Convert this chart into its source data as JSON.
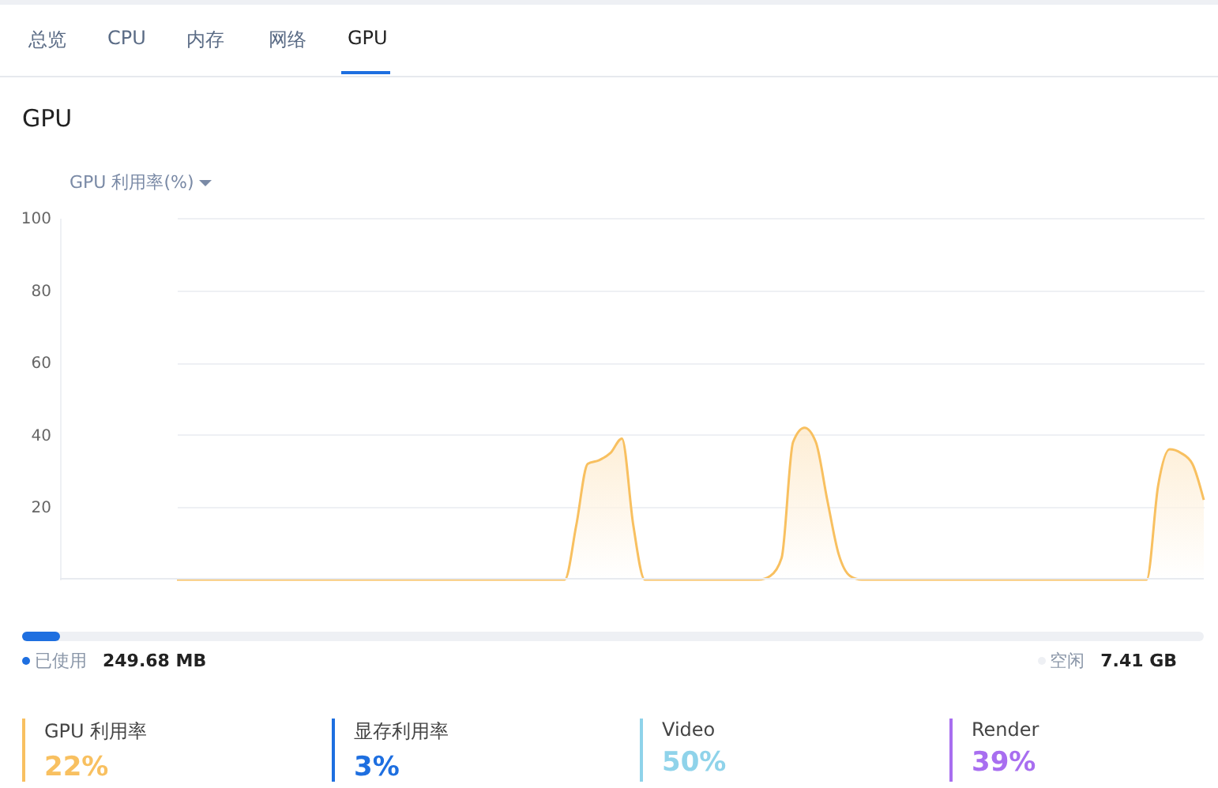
{
  "chart_data": {
    "type": "area",
    "title": "GPU",
    "ylabel": "GPU 利用率(%)",
    "categories": [
      null,
      null,
      null,
      null,
      null,
      null,
      null,
      null,
      null,
      null,
      null,
      null,
      null,
      null,
      null,
      null,
      null,
      null,
      null,
      null,
      null,
      null,
      null,
      null,
      null,
      null,
      null,
      null,
      null,
      null,
      null,
      null,
      null,
      null,
      null,
      null,
      null,
      null,
      null,
      null,
      null,
      null,
      null,
      null,
      null,
      null,
      null,
      null,
      null,
      null,
      null,
      null,
      null,
      null,
      null,
      null,
      null,
      null,
      null,
      null,
      null,
      null,
      null,
      null,
      null,
      null,
      null,
      null,
      null,
      null,
      null,
      null,
      null,
      null,
      null,
      null,
      null,
      null,
      null,
      null,
      null,
      null,
      null,
      null,
      null,
      null,
      null,
      null,
      null,
      null,
      null
    ],
    "series": [
      {
        "color": "#f8c060",
        "values": [
          0,
          0,
          0,
          0,
          0,
          0,
          0,
          0,
          0,
          0,
          0,
          0,
          0,
          0,
          0,
          0,
          0,
          0,
          0,
          0,
          0,
          0,
          0,
          0,
          0,
          0,
          0,
          0,
          0,
          0,
          0,
          0,
          0,
          0,
          0,
          15,
          32,
          33,
          35,
          39,
          15,
          0,
          0,
          0,
          0,
          0,
          0,
          0,
          0,
          0,
          0,
          0,
          1,
          6,
          38,
          42,
          38,
          22,
          7,
          1,
          0,
          0,
          0,
          0,
          0,
          0,
          0,
          0,
          0,
          0,
          0,
          0,
          0,
          0,
          0,
          0,
          0,
          0,
          0,
          0,
          0,
          0,
          0,
          0,
          0,
          0,
          26,
          36,
          35,
          32,
          22
        ]
      }
    ],
    "ylim": [
      0,
      100
    ],
    "yticks": [
      20,
      40,
      60,
      80,
      100
    ],
    "grid": "y",
    "annotations": [
      "总览",
      "CPU",
      "内存",
      "网络",
      "GPU",
      "已使用",
      "249.68 MB",
      "空闲",
      "7.41 GB",
      "GPU 利用率",
      "22%",
      "显存利用率",
      "3%",
      "Video",
      "50%",
      "Render",
      "39%"
    ]
  }
}
